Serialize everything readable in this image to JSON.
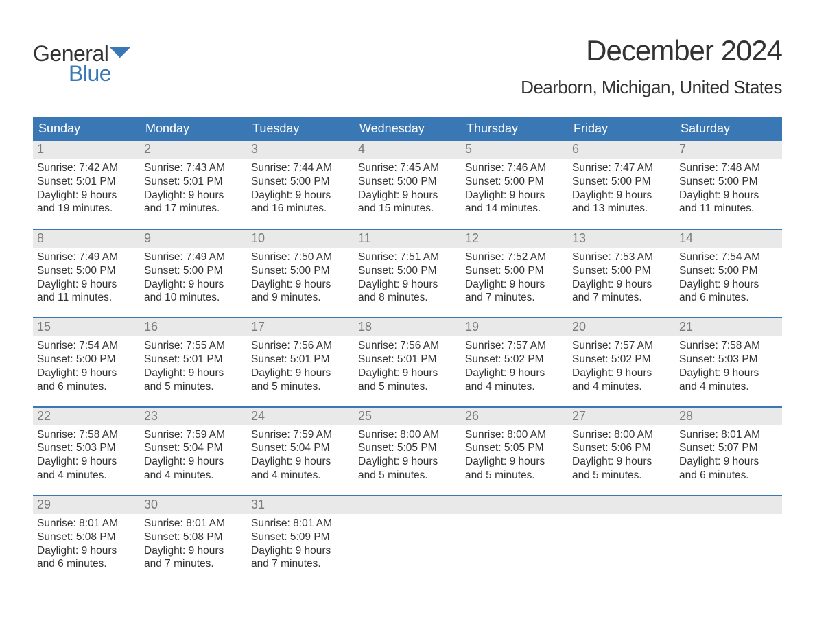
{
  "logo": {
    "text1": "General",
    "text2": "Blue",
    "accent_color": "#3a78b5",
    "text_color": "#333333"
  },
  "title": "December 2024",
  "location": "Dearborn, Michigan, United States",
  "header_bg": "#3a78b5",
  "header_fg": "#ffffff",
  "daynum_bg": "#e9e9e9",
  "daynum_fg": "#7a7a7a",
  "border_color": "#3a78b5",
  "columns": [
    "Sunday",
    "Monday",
    "Tuesday",
    "Wednesday",
    "Thursday",
    "Friday",
    "Saturday"
  ],
  "weeks": [
    [
      {
        "n": "1",
        "sr": "7:42 AM",
        "ss": "5:01 PM",
        "dl": "9 hours and 19 minutes."
      },
      {
        "n": "2",
        "sr": "7:43 AM",
        "ss": "5:01 PM",
        "dl": "9 hours and 17 minutes."
      },
      {
        "n": "3",
        "sr": "7:44 AM",
        "ss": "5:00 PM",
        "dl": "9 hours and 16 minutes."
      },
      {
        "n": "4",
        "sr": "7:45 AM",
        "ss": "5:00 PM",
        "dl": "9 hours and 15 minutes."
      },
      {
        "n": "5",
        "sr": "7:46 AM",
        "ss": "5:00 PM",
        "dl": "9 hours and 14 minutes."
      },
      {
        "n": "6",
        "sr": "7:47 AM",
        "ss": "5:00 PM",
        "dl": "9 hours and 13 minutes."
      },
      {
        "n": "7",
        "sr": "7:48 AM",
        "ss": "5:00 PM",
        "dl": "9 hours and 11 minutes."
      }
    ],
    [
      {
        "n": "8",
        "sr": "7:49 AM",
        "ss": "5:00 PM",
        "dl": "9 hours and 11 minutes."
      },
      {
        "n": "9",
        "sr": "7:49 AM",
        "ss": "5:00 PM",
        "dl": "9 hours and 10 minutes."
      },
      {
        "n": "10",
        "sr": "7:50 AM",
        "ss": "5:00 PM",
        "dl": "9 hours and 9 minutes."
      },
      {
        "n": "11",
        "sr": "7:51 AM",
        "ss": "5:00 PM",
        "dl": "9 hours and 8 minutes."
      },
      {
        "n": "12",
        "sr": "7:52 AM",
        "ss": "5:00 PM",
        "dl": "9 hours and 7 minutes."
      },
      {
        "n": "13",
        "sr": "7:53 AM",
        "ss": "5:00 PM",
        "dl": "9 hours and 7 minutes."
      },
      {
        "n": "14",
        "sr": "7:54 AM",
        "ss": "5:00 PM",
        "dl": "9 hours and 6 minutes."
      }
    ],
    [
      {
        "n": "15",
        "sr": "7:54 AM",
        "ss": "5:00 PM",
        "dl": "9 hours and 6 minutes."
      },
      {
        "n": "16",
        "sr": "7:55 AM",
        "ss": "5:01 PM",
        "dl": "9 hours and 5 minutes."
      },
      {
        "n": "17",
        "sr": "7:56 AM",
        "ss": "5:01 PM",
        "dl": "9 hours and 5 minutes."
      },
      {
        "n": "18",
        "sr": "7:56 AM",
        "ss": "5:01 PM",
        "dl": "9 hours and 5 minutes."
      },
      {
        "n": "19",
        "sr": "7:57 AM",
        "ss": "5:02 PM",
        "dl": "9 hours and 4 minutes."
      },
      {
        "n": "20",
        "sr": "7:57 AM",
        "ss": "5:02 PM",
        "dl": "9 hours and 4 minutes."
      },
      {
        "n": "21",
        "sr": "7:58 AM",
        "ss": "5:03 PM",
        "dl": "9 hours and 4 minutes."
      }
    ],
    [
      {
        "n": "22",
        "sr": "7:58 AM",
        "ss": "5:03 PM",
        "dl": "9 hours and 4 minutes."
      },
      {
        "n": "23",
        "sr": "7:59 AM",
        "ss": "5:04 PM",
        "dl": "9 hours and 4 minutes."
      },
      {
        "n": "24",
        "sr": "7:59 AM",
        "ss": "5:04 PM",
        "dl": "9 hours and 4 minutes."
      },
      {
        "n": "25",
        "sr": "8:00 AM",
        "ss": "5:05 PM",
        "dl": "9 hours and 5 minutes."
      },
      {
        "n": "26",
        "sr": "8:00 AM",
        "ss": "5:05 PM",
        "dl": "9 hours and 5 minutes."
      },
      {
        "n": "27",
        "sr": "8:00 AM",
        "ss": "5:06 PM",
        "dl": "9 hours and 5 minutes."
      },
      {
        "n": "28",
        "sr": "8:01 AM",
        "ss": "5:07 PM",
        "dl": "9 hours and 6 minutes."
      }
    ],
    [
      {
        "n": "29",
        "sr": "8:01 AM",
        "ss": "5:08 PM",
        "dl": "9 hours and 6 minutes."
      },
      {
        "n": "30",
        "sr": "8:01 AM",
        "ss": "5:08 PM",
        "dl": "9 hours and 7 minutes."
      },
      {
        "n": "31",
        "sr": "8:01 AM",
        "ss": "5:09 PM",
        "dl": "9 hours and 7 minutes."
      },
      null,
      null,
      null,
      null
    ]
  ],
  "labels": {
    "sunrise": "Sunrise:",
    "sunset": "Sunset:",
    "daylight": "Daylight:"
  }
}
